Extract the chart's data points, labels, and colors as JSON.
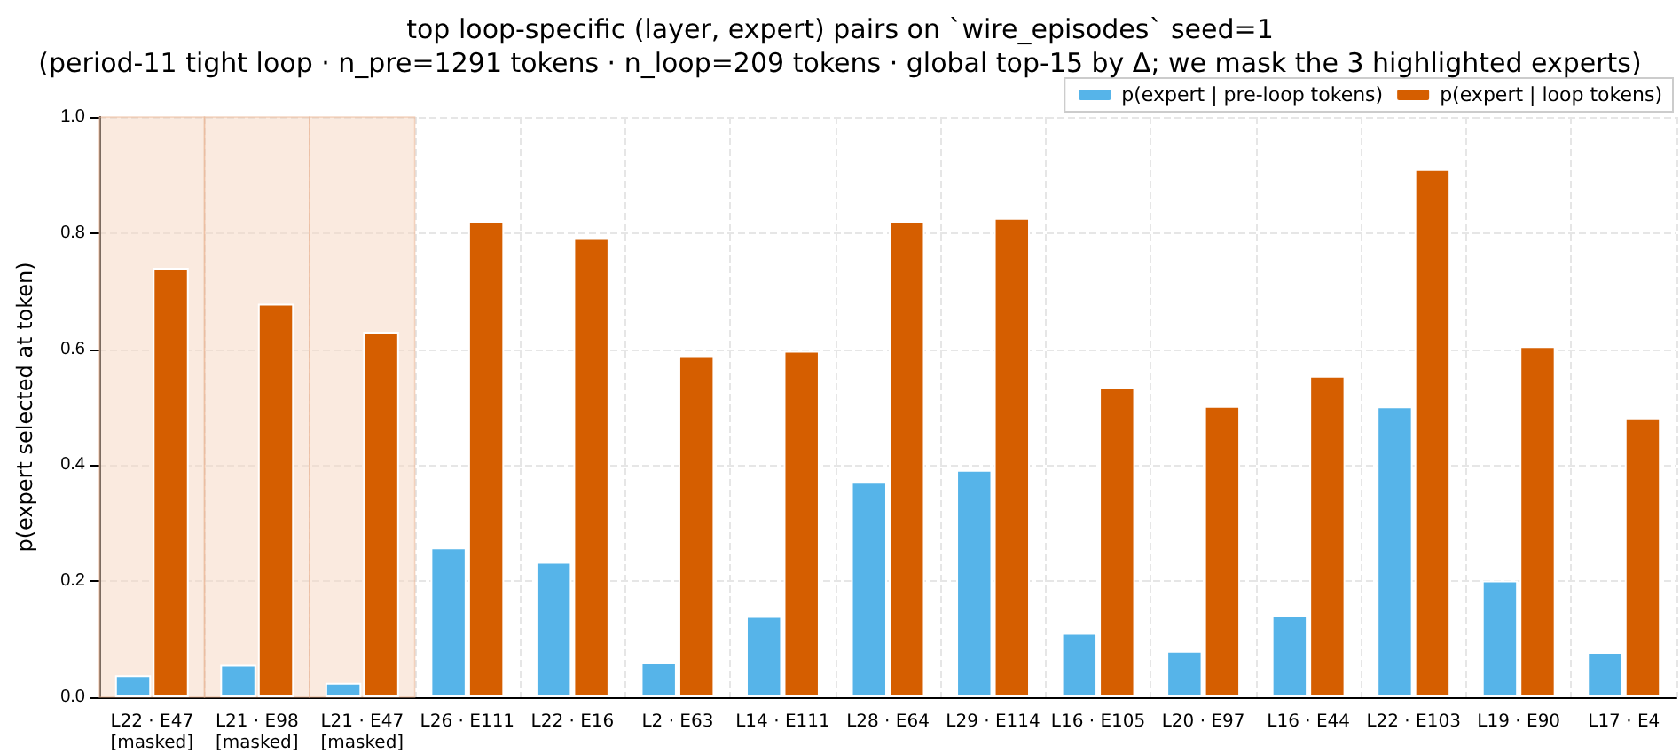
{
  "chart_data": {
    "type": "bar",
    "title": "top loop-specific (layer, expert) pairs on `wire_episodes` seed=1",
    "subtitle": "(period-11 tight loop · n_pre=1291 tokens · n_loop=209 tokens · global top-15 by Δ; we mask the 3 highlighted experts)",
    "ylabel": "p(expert selected at token)",
    "categories": [
      "L22 · E47\n[masked]",
      "L21 · E98\n[masked]",
      "L21 · E47\n[masked]",
      "L26 · E111",
      "L22 · E16",
      "L2 · E63",
      "L14 · E111",
      "L28 · E64",
      "L29 · E114",
      "L16 · E105",
      "L20 · E97",
      "L16 · E44",
      "L22 · E103",
      "L19 · E90",
      "L17 · E4"
    ],
    "series": [
      {
        "name": "p(expert | pre-loop tokens)",
        "color": "#56b4e9",
        "values": [
          0.038,
          0.056,
          0.025,
          0.258,
          0.233,
          0.06,
          0.14,
          0.371,
          0.392,
          0.111,
          0.08,
          0.142,
          0.501,
          0.201,
          0.078
        ]
      },
      {
        "name": "p(expert | loop tokens)",
        "color": "#d55e00",
        "values": [
          0.74,
          0.678,
          0.63,
          0.821,
          0.793,
          0.588,
          0.597,
          0.821,
          0.826,
          0.535,
          0.502,
          0.554,
          0.91,
          0.605,
          0.482
        ]
      }
    ],
    "ylim": [
      0,
      1
    ],
    "yticks": [
      {
        "value": 0,
        "label": "0.0"
      },
      {
        "value": 0.2,
        "label": "0.2"
      },
      {
        "value": 0.4,
        "label": "0.4"
      },
      {
        "value": 0.6,
        "label": "0.6"
      },
      {
        "value": 0.8,
        "label": "0.8"
      },
      {
        "value": 1,
        "label": "1.0"
      }
    ],
    "bands": [
      {
        "axis": "x",
        "from": "L22 · E47\n[masked]",
        "to": "L22 · E47\n[masked]",
        "color": "#f6d5c0"
      },
      {
        "axis": "x",
        "from": "L21 · E98\n[masked]",
        "to": "L21 · E98\n[masked]",
        "color": "#f6d5c0"
      },
      {
        "axis": "x",
        "from": "L21 · E47\n[masked]",
        "to": "L21 · E47\n[masked]",
        "color": "#f6d5c0"
      }
    ],
    "grid": true,
    "legend": "top right"
  }
}
